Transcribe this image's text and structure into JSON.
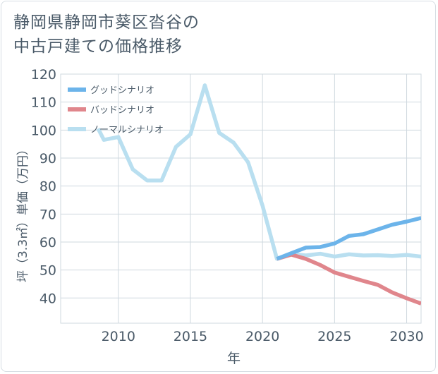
{
  "page": {
    "title_line1": "静岡県静岡市葵区沓谷の",
    "title_line2": "中古戸建ての価格推移"
  },
  "chart_data": {
    "type": "line",
    "title": "静岡県静岡市葵区沓谷の中古戸建ての価格推移",
    "xlabel": "年",
    "ylabel": "坪（3.3㎡）単価（万円）",
    "xlim": [
      2006,
      2031
    ],
    "ylim": [
      31,
      120
    ],
    "x_ticks": [
      2010,
      2015,
      2020,
      2025,
      2030
    ],
    "y_ticks": [
      40,
      50,
      60,
      70,
      80,
      90,
      100,
      110,
      120
    ],
    "grid": true,
    "legend_position": "top-left",
    "series": [
      {
        "name": "グッドシナリオ",
        "color": "#6cb4ea",
        "x": [
          2021,
          2022,
          2023,
          2024,
          2025,
          2026,
          2027,
          2028,
          2029,
          2030,
          2031
        ],
        "y": [
          54,
          56,
          58,
          58.2,
          59.5,
          62.2,
          62.8,
          64.5,
          66.2,
          67.3,
          68.6
        ]
      },
      {
        "name": "バッドシナリオ",
        "color": "#e0868c",
        "x": [
          2021,
          2022,
          2023,
          2024,
          2025,
          2026,
          2027,
          2028,
          2029,
          2030,
          2031
        ],
        "y": [
          54,
          55.5,
          54,
          51.8,
          49.1,
          47.6,
          46.1,
          44.7,
          42,
          39.9,
          38
        ]
      },
      {
        "name": "ノーマルシナリオ",
        "color": "#b9dff0",
        "x": [
          2009,
          2010,
          2011,
          2012,
          2013,
          2014,
          2015,
          2016,
          2017,
          2018,
          2019,
          2020,
          2021,
          2022,
          2023,
          2024,
          2025,
          2026,
          2027,
          2028,
          2029,
          2030,
          2031
        ],
        "y": [
          96.5,
          97.5,
          86,
          82,
          82,
          94,
          98.5,
          116,
          99,
          95.5,
          88.5,
          73,
          54,
          55.8,
          55.2,
          55.8,
          54.8,
          55.6,
          55.2,
          55.3,
          55,
          55.4,
          54.8
        ]
      }
    ],
    "pre_segment": {
      "series": "ノーマルシナリオ",
      "x": [
        2008.6,
        2009
      ],
      "y": [
        100.5,
        96.5
      ]
    }
  }
}
